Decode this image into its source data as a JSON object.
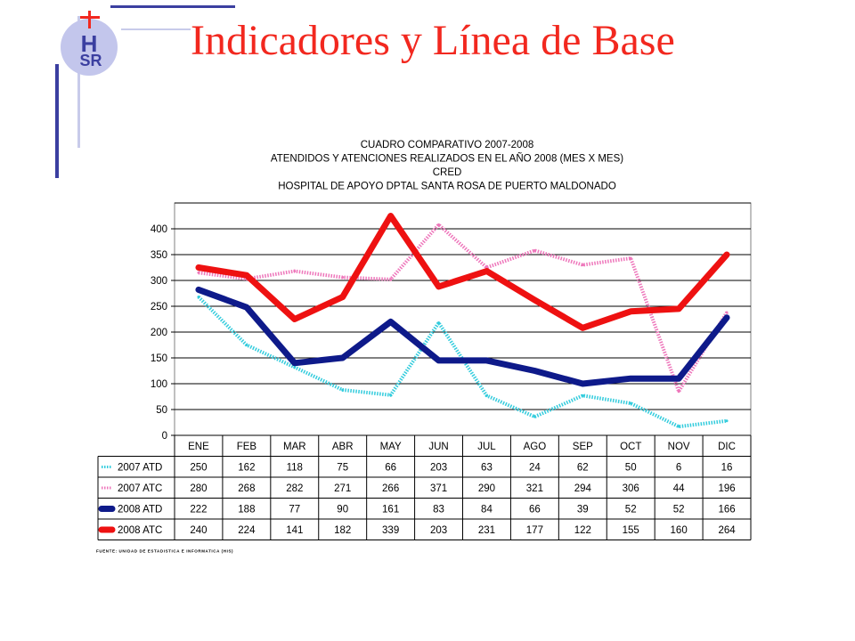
{
  "slide": {
    "title": "Indicadores y Línea de Base",
    "logo_text": [
      "H",
      "SR"
    ],
    "accent_color": "#f2281f",
    "logo_color": "#3b3fa0"
  },
  "chart_data": {
    "type": "line",
    "title_lines": [
      "CUADRO COMPARATIVO 2007-2008",
      "ATENDIDOS Y ATENCIONES  REALIZADOS EN  EL AÑO 2008 (MES X MES)",
      "CRED",
      "HOSPITAL DE APOYO DPTAL SANTA ROSA DE PUERTO MALDONADO"
    ],
    "categories": [
      "ENE",
      "FEB",
      "MAR",
      "ABR",
      "MAY",
      "JUN",
      "JUL",
      "AGO",
      "SEP",
      "OCT",
      "NOV",
      "DIC"
    ],
    "ylim": [
      0,
      450
    ],
    "yticks": [
      0,
      50,
      100,
      150,
      200,
      250,
      300,
      350,
      400
    ],
    "grid": true,
    "legend": "data-table",
    "series": [
      {
        "name": "2007 ATD",
        "color": "#33ccdd",
        "style": "dotted",
        "values": [
          250,
          162,
          118,
          75,
          66,
          203,
          63,
          24,
          62,
          50,
          6,
          16
        ],
        "plotted": [
          268,
          175,
          132,
          88,
          78,
          218,
          77,
          36,
          77,
          62,
          17,
          28
        ]
      },
      {
        "name": "2007 ATC",
        "color": "#ee77bb",
        "style": "dotted",
        "values": [
          280,
          268,
          282,
          271,
          266,
          371,
          290,
          321,
          294,
          306,
          44,
          196
        ],
        "plotted": [
          315,
          303,
          318,
          306,
          302,
          408,
          325,
          358,
          330,
          343,
          85,
          238
        ]
      },
      {
        "name": "2008 ATD",
        "color": "#0e1a8a",
        "style": "solid",
        "values": [
          222,
          188,
          77,
          90,
          161,
          83,
          84,
          66,
          39,
          52,
          52,
          166
        ],
        "plotted": [
          282,
          248,
          140,
          150,
          220,
          145,
          145,
          125,
          100,
          110,
          110,
          228
        ]
      },
      {
        "name": "2008 ATC",
        "color": "#ee1111",
        "style": "solid",
        "values": [
          240,
          224,
          141,
          182,
          339,
          203,
          231,
          177,
          122,
          155,
          160,
          264
        ],
        "plotted": [
          325,
          310,
          225,
          268,
          425,
          288,
          318,
          262,
          208,
          240,
          245,
          350
        ]
      }
    ],
    "source": "FUENTE: UNIDAD DE ESTADISTICA E INFORMATICA (HIS)"
  }
}
